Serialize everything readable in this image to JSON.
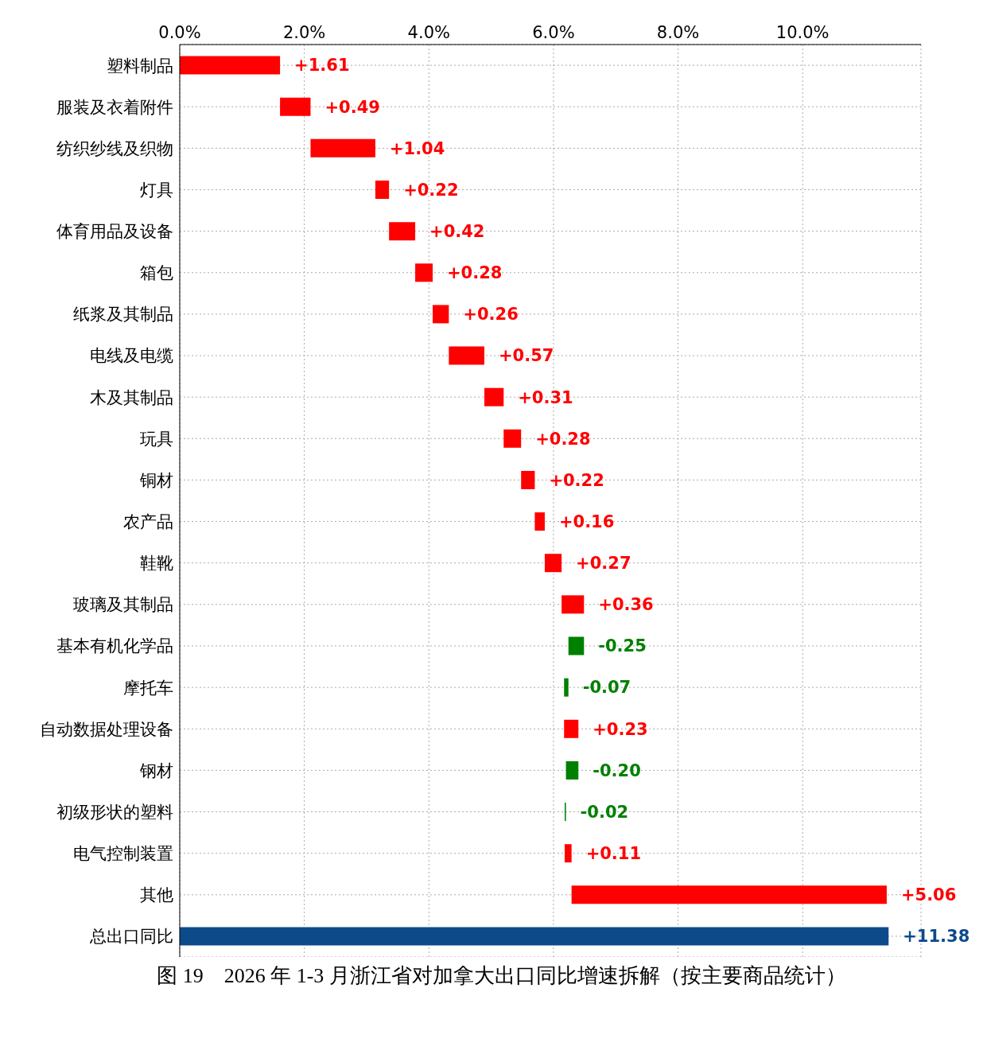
{
  "chart_data": {
    "type": "bar",
    "orientation": "horizontal",
    "title": "图 19　2026 年 1-3 月浙江省对加拿大出口同比增速拆解（按主要商品统计）",
    "categories": [
      "塑料制品",
      "服装及衣着附件",
      "纺织纱线及织物",
      "灯具",
      "体育用品及设备",
      "箱包",
      "纸浆及其制品",
      "电线及电缆",
      "木及其制品",
      "玩具",
      "铜材",
      "农产品",
      "鞋靴",
      "玻璃及其制品",
      "基本有机化学品",
      "摩托车",
      "自动数据处理设备",
      "钢材",
      "初级形状的塑料",
      "电气控制装置",
      "其他",
      "总出口同比"
    ],
    "values": [
      1.61,
      0.49,
      1.04,
      0.22,
      0.42,
      0.28,
      0.26,
      0.57,
      0.31,
      0.28,
      0.22,
      0.16,
      0.27,
      0.36,
      -0.25,
      -0.07,
      0.23,
      -0.2,
      -0.02,
      0.11,
      5.06,
      11.38
    ],
    "base": [
      0,
      1.61,
      2.1,
      3.14,
      3.36,
      3.78,
      4.06,
      4.32,
      4.89,
      5.2,
      5.48,
      5.7,
      5.86,
      6.13,
      6.49,
      6.24,
      6.17,
      6.4,
      6.2,
      6.18,
      6.29,
      0
    ],
    "colors": [
      "#ff0000",
      "#ff0000",
      "#ff0000",
      "#ff0000",
      "#ff0000",
      "#ff0000",
      "#ff0000",
      "#ff0000",
      "#ff0000",
      "#ff0000",
      "#ff0000",
      "#ff0000",
      "#ff0000",
      "#ff0000",
      "#008000",
      "#008000",
      "#ff0000",
      "#008000",
      "#008000",
      "#ff0000",
      "#ff0000",
      "#0d4a8a"
    ],
    "value_labels": [
      "+1.61",
      "+0.49",
      "+1.04",
      "+0.22",
      "+0.42",
      "+0.28",
      "+0.26",
      "+0.57",
      "+0.31",
      "+0.28",
      "+0.22",
      "+0.16",
      "+0.27",
      "+0.36",
      "-0.25",
      "-0.07",
      "+0.23",
      "-0.20",
      "-0.02",
      "+0.11",
      "+5.06",
      "+11.38"
    ],
    "xlim": [
      0,
      11.9
    ],
    "xticks": [
      {
        "value": 0,
        "label": "0.0%"
      },
      {
        "value": 2,
        "label": "2.0%"
      },
      {
        "value": 4,
        "label": "4.0%"
      },
      {
        "value": 6,
        "label": "6.0%"
      },
      {
        "value": 8,
        "label": "8.0%"
      },
      {
        "value": 10,
        "label": "10.0%"
      }
    ],
    "grid": true
  }
}
